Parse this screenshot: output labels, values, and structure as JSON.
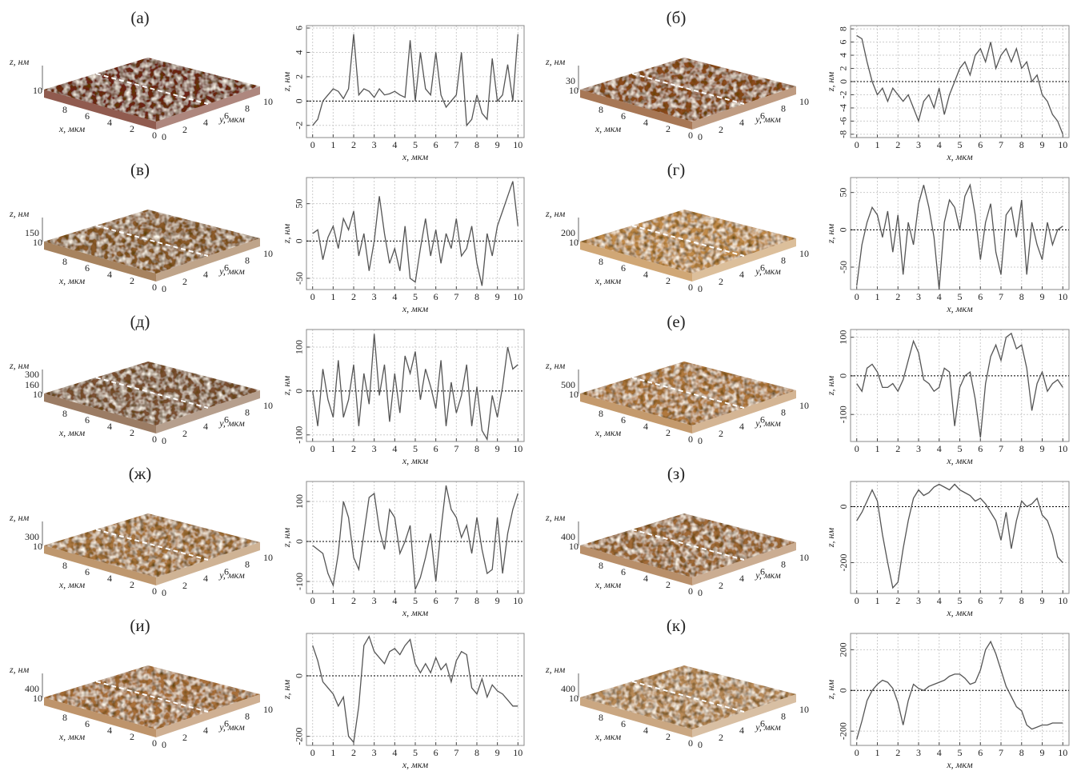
{
  "chart_data": [
    {
      "type": "line",
      "label": "(а)",
      "xlabel": "x, мкм",
      "ylabel": "z, нм",
      "color": "#555",
      "grid": true,
      "zero_line": true,
      "x": [
        0,
        0.25,
        0.5,
        0.75,
        1,
        1.25,
        1.5,
        1.75,
        2,
        2.25,
        2.5,
        2.75,
        3,
        3.25,
        3.5,
        3.75,
        4,
        4.25,
        4.5,
        4.75,
        5,
        5.25,
        5.5,
        5.75,
        6,
        6.25,
        6.5,
        6.75,
        7,
        7.25,
        7.5,
        7.75,
        8,
        8.25,
        8.5,
        8.75,
        9,
        9.25,
        9.5,
        9.75,
        10
      ],
      "values": [
        -2,
        -1.5,
        0,
        0.5,
        1,
        0.8,
        0.2,
        1,
        5.5,
        0.5,
        1,
        0.8,
        0.3,
        1,
        0.5,
        0.6,
        0.8,
        0.5,
        0.3,
        5,
        0,
        4,
        1,
        0.5,
        4,
        0.5,
        -0.5,
        0,
        0.5,
        4,
        -2,
        -1.5,
        0.5,
        -1,
        -1.5,
        3.5,
        0,
        0.5,
        3,
        0,
        5.5
      ],
      "xlim": [
        -0.3,
        10.3
      ],
      "ylim": [
        -3,
        6.2
      ],
      "xticks": [
        0,
        1,
        2,
        3,
        4,
        5,
        6,
        7,
        8,
        9,
        10
      ],
      "yticks": [
        -2,
        0,
        2,
        4,
        6
      ],
      "surface": {
        "color": "#6b2414",
        "z_label": "z, нм",
        "x_label": "x, мкм",
        "y_label": "y, мкм",
        "z_ticks": [],
        "x_ticks": [
          10,
          8,
          6,
          4,
          2,
          0
        ],
        "y_ticks": [
          0,
          2,
          4,
          6,
          8,
          10
        ]
      }
    },
    {
      "type": "line",
      "label": "(б)",
      "xlabel": "x, мкм",
      "ylabel": "z, нм",
      "color": "#555",
      "grid": true,
      "zero_line": true,
      "x": [
        0,
        0.25,
        0.5,
        0.75,
        1,
        1.25,
        1.5,
        1.75,
        2,
        2.25,
        2.5,
        2.75,
        3,
        3.25,
        3.5,
        3.75,
        4,
        4.25,
        4.5,
        4.75,
        5,
        5.25,
        5.5,
        5.75,
        6,
        6.25,
        6.5,
        6.75,
        7,
        7.25,
        7.5,
        7.75,
        8,
        8.25,
        8.5,
        8.75,
        9,
        9.25,
        9.5,
        9.75,
        10
      ],
      "values": [
        7,
        6.5,
        3,
        0,
        -2,
        -1,
        -3,
        -1,
        -2,
        -3,
        -2,
        -4,
        -6,
        -3,
        -2,
        -4,
        -1,
        -5,
        -2,
        0,
        2,
        3,
        1,
        4,
        5,
        3,
        6,
        2,
        4,
        5,
        3,
        5,
        2,
        3,
        0,
        1,
        -2,
        -3,
        -5,
        -6,
        -8
      ],
      "xlim": [
        -0.3,
        10.3
      ],
      "ylim": [
        -8.5,
        8.5
      ],
      "xticks": [
        0,
        1,
        2,
        3,
        4,
        5,
        6,
        7,
        8,
        9,
        10
      ],
      "yticks": [
        -8,
        -6,
        -4,
        -2,
        0,
        2,
        4,
        6,
        8
      ],
      "surface": {
        "color": "#8a4a1c",
        "z_label": "z, нм",
        "x_label": "x, мкм",
        "y_label": "y, мкм",
        "z_ticks": [
          30
        ],
        "x_ticks": [
          10,
          8,
          6,
          4,
          2,
          0
        ],
        "y_ticks": [
          0,
          2,
          4,
          6,
          8,
          10
        ]
      }
    },
    {
      "type": "line",
      "label": "(в)",
      "xlabel": "x, мкм",
      "ylabel": "z, нм",
      "color": "#555",
      "grid": true,
      "zero_line": true,
      "x": [
        0,
        0.25,
        0.5,
        0.75,
        1,
        1.25,
        1.5,
        1.75,
        2,
        2.25,
        2.5,
        2.75,
        3,
        3.25,
        3.5,
        3.75,
        4,
        4.25,
        4.5,
        4.75,
        5,
        5.25,
        5.5,
        5.75,
        6,
        6.25,
        6.5,
        6.75,
        7,
        7.25,
        7.5,
        7.75,
        8,
        8.25,
        8.5,
        8.75,
        9,
        9.25,
        9.5,
        9.75,
        10
      ],
      "values": [
        10,
        15,
        -25,
        5,
        20,
        -10,
        30,
        15,
        40,
        -20,
        10,
        -40,
        0,
        60,
        10,
        -30,
        -10,
        -40,
        20,
        -50,
        -55,
        -10,
        30,
        -20,
        15,
        -30,
        10,
        -10,
        30,
        -20,
        -10,
        20,
        -30,
        -60,
        10,
        -20,
        20,
        40,
        60,
        80,
        20
      ],
      "xlim": [
        -0.3,
        10.3
      ],
      "ylim": [
        -65,
        85
      ],
      "xticks": [
        0,
        1,
        2,
        3,
        4,
        5,
        6,
        7,
        8,
        9,
        10
      ],
      "yticks": [
        -50,
        0,
        50
      ],
      "surface": {
        "color": "#8a5a2a",
        "z_label": "z, нм",
        "x_label": "x, мкм",
        "y_label": "y, мкм",
        "z_ticks": [
          150
        ],
        "x_ticks": [
          10,
          8,
          6,
          4,
          2,
          0
        ],
        "y_ticks": [
          0,
          2,
          4,
          6,
          8,
          10
        ]
      }
    },
    {
      "type": "line",
      "label": "(г)",
      "xlabel": "x, мкм",
      "ylabel": "z, нм",
      "color": "#555",
      "grid": true,
      "zero_line": true,
      "x": [
        0,
        0.25,
        0.5,
        0.75,
        1,
        1.25,
        1.5,
        1.75,
        2,
        2.25,
        2.5,
        2.75,
        3,
        3.25,
        3.5,
        3.75,
        4,
        4.25,
        4.5,
        4.75,
        5,
        5.25,
        5.5,
        5.75,
        6,
        6.25,
        6.5,
        6.75,
        7,
        7.25,
        7.5,
        7.75,
        8,
        8.25,
        8.5,
        8.75,
        9,
        9.25,
        9.5,
        9.75,
        10
      ],
      "values": [
        -75,
        -20,
        10,
        30,
        20,
        -10,
        25,
        -30,
        20,
        -60,
        10,
        -20,
        35,
        60,
        30,
        -10,
        -80,
        10,
        40,
        30,
        0,
        45,
        60,
        20,
        -40,
        10,
        35,
        -30,
        -60,
        20,
        30,
        -10,
        40,
        -60,
        10,
        -20,
        -40,
        10,
        -20,
        0,
        5
      ],
      "xlim": [
        -0.3,
        10.3
      ],
      "ylim": [
        -80,
        70
      ],
      "xticks": [
        0,
        1,
        2,
        3,
        4,
        5,
        6,
        7,
        8,
        9,
        10
      ],
      "yticks": [
        -50,
        0,
        50
      ],
      "surface": {
        "color": "#c08a48",
        "z_label": "z, нм",
        "x_label": "x, мкм",
        "y_label": "y, мкм",
        "z_ticks": [
          200
        ],
        "x_ticks": [
          10,
          8,
          6,
          4,
          2,
          0
        ],
        "y_ticks": [
          0,
          2,
          4,
          6,
          8,
          10
        ]
      }
    },
    {
      "type": "line",
      "label": "(д)",
      "xlabel": "x, мкм",
      "ylabel": "z, нм",
      "color": "#555",
      "grid": true,
      "zero_line": true,
      "x": [
        0,
        0.25,
        0.5,
        0.75,
        1,
        1.25,
        1.5,
        1.75,
        2,
        2.25,
        2.5,
        2.75,
        3,
        3.25,
        3.5,
        3.75,
        4,
        4.25,
        4.5,
        4.75,
        5,
        5.25,
        5.5,
        5.75,
        6,
        6.25,
        6.5,
        6.75,
        7,
        7.25,
        7.5,
        7.75,
        8,
        8.25,
        8.5,
        8.75,
        9,
        9.25,
        9.5,
        9.75,
        10
      ],
      "values": [
        0,
        -80,
        50,
        -20,
        -60,
        70,
        -60,
        -20,
        60,
        -80,
        40,
        -30,
        130,
        -10,
        60,
        -70,
        40,
        -50,
        80,
        40,
        90,
        -20,
        50,
        10,
        -40,
        70,
        -80,
        20,
        -50,
        -10,
        60,
        -80,
        10,
        -90,
        -110,
        -10,
        -60,
        10,
        100,
        50,
        60
      ],
      "xlim": [
        -0.3,
        10.3
      ],
      "ylim": [
        -115,
        140
      ],
      "xticks": [
        0,
        1,
        2,
        3,
        4,
        5,
        6,
        7,
        8,
        9,
        10
      ],
      "yticks": [
        -100,
        0,
        100
      ],
      "surface": {
        "color": "#7a5030",
        "z_label": "z, нм",
        "x_label": "x, мкм",
        "y_label": "y, мкм",
        "z_ticks": [
          300,
          160
        ],
        "x_ticks": [
          10,
          8,
          6,
          4,
          2,
          0
        ],
        "y_ticks": [
          0,
          2,
          4,
          6,
          8,
          10
        ]
      }
    },
    {
      "type": "line",
      "label": "(е)",
      "xlabel": "x, мкм",
      "ylabel": "z, нм",
      "color": "#555",
      "grid": true,
      "zero_line": true,
      "x": [
        0,
        0.25,
        0.5,
        0.75,
        1,
        1.25,
        1.5,
        1.75,
        2,
        2.25,
        2.5,
        2.75,
        3,
        3.25,
        3.5,
        3.75,
        4,
        4.25,
        4.5,
        4.75,
        5,
        5.25,
        5.5,
        5.75,
        6,
        6.25,
        6.5,
        6.75,
        7,
        7.25,
        7.5,
        7.75,
        8,
        8.25,
        8.5,
        8.75,
        9,
        9.25,
        9.5,
        9.75,
        10
      ],
      "values": [
        -20,
        -40,
        20,
        30,
        10,
        -30,
        -30,
        -20,
        -40,
        -10,
        40,
        90,
        60,
        -10,
        -20,
        -40,
        -30,
        20,
        10,
        -130,
        -30,
        0,
        10,
        -60,
        -160,
        -20,
        50,
        80,
        40,
        100,
        110,
        70,
        80,
        20,
        -90,
        -20,
        10,
        -40,
        -20,
        -10,
        -30
      ],
      "xlim": [
        -0.3,
        10.3
      ],
      "ylim": [
        -170,
        120
      ],
      "xticks": [
        0,
        1,
        2,
        3,
        4,
        5,
        6,
        7,
        8,
        9,
        10
      ],
      "yticks": [
        -100,
        0,
        100
      ],
      "surface": {
        "color": "#b0783c",
        "z_label": "z, нм",
        "x_label": "x, мкм",
        "y_label": "y, мкм",
        "z_ticks": [
          500
        ],
        "x_ticks": [
          10,
          8,
          6,
          4,
          2,
          0
        ],
        "y_ticks": [
          0,
          2,
          4,
          6,
          8,
          10
        ]
      }
    },
    {
      "type": "line",
      "label": "(ж)",
      "xlabel": "x, мкм",
      "ylabel": "z, нм",
      "color": "#555",
      "grid": true,
      "zero_line": true,
      "x": [
        0,
        0.25,
        0.5,
        0.75,
        1,
        1.25,
        1.5,
        1.75,
        2,
        2.25,
        2.5,
        2.75,
        3,
        3.25,
        3.5,
        3.75,
        4,
        4.25,
        4.5,
        4.75,
        5,
        5.25,
        5.5,
        5.75,
        6,
        6.25,
        6.5,
        6.75,
        7,
        7.25,
        7.5,
        7.75,
        8,
        8.25,
        8.5,
        8.75,
        9,
        9.25,
        9.5,
        9.75,
        10
      ],
      "values": [
        -10,
        -20,
        -30,
        -80,
        -110,
        -30,
        100,
        60,
        -40,
        -70,
        20,
        110,
        120,
        30,
        -20,
        80,
        60,
        -30,
        0,
        40,
        -120,
        -90,
        -40,
        20,
        -100,
        30,
        140,
        80,
        60,
        10,
        40,
        -30,
        60,
        -20,
        -80,
        -70,
        60,
        -80,
        20,
        80,
        120
      ],
      "xlim": [
        -0.3,
        10.3
      ],
      "ylim": [
        -130,
        150
      ],
      "xticks": [
        0,
        1,
        2,
        3,
        4,
        5,
        6,
        7,
        8,
        9,
        10
      ],
      "yticks": [
        -100,
        0,
        100
      ],
      "surface": {
        "color": "#a8743e",
        "z_label": "z, нм",
        "x_label": "x, мкм",
        "y_label": "y, мкм",
        "z_ticks": [
          300
        ],
        "x_ticks": [
          10,
          8,
          6,
          4,
          2,
          0
        ],
        "y_ticks": [
          0,
          2,
          4,
          6,
          8,
          10
        ]
      }
    },
    {
      "type": "line",
      "label": "(з)",
      "xlabel": "x, мкм",
      "ylabel": "z, нм",
      "color": "#555",
      "grid": true,
      "zero_line": true,
      "x": [
        0,
        0.25,
        0.5,
        0.75,
        1,
        1.25,
        1.5,
        1.75,
        2,
        2.25,
        2.5,
        2.75,
        3,
        3.25,
        3.5,
        3.75,
        4,
        4.25,
        4.5,
        4.75,
        5,
        5.25,
        5.5,
        5.75,
        6,
        6.25,
        6.5,
        6.75,
        7,
        7.25,
        7.5,
        7.75,
        8,
        8.25,
        8.5,
        8.75,
        9,
        9.25,
        9.5,
        9.75,
        10
      ],
      "values": [
        -50,
        -20,
        20,
        60,
        20,
        -100,
        -200,
        -290,
        -270,
        -150,
        -50,
        30,
        60,
        40,
        50,
        70,
        80,
        70,
        60,
        80,
        60,
        50,
        40,
        20,
        30,
        10,
        -20,
        -50,
        -120,
        -20,
        -150,
        -50,
        20,
        0,
        10,
        30,
        -30,
        -50,
        -100,
        -180,
        -200
      ],
      "xlim": [
        -0.3,
        10.3
      ],
      "ylim": [
        -310,
        90
      ],
      "xticks": [
        0,
        1,
        2,
        3,
        4,
        5,
        6,
        7,
        8,
        9,
        10
      ],
      "yticks": [
        -200,
        0
      ],
      "surface": {
        "color": "#a06a38",
        "z_label": "z, нм",
        "x_label": "x, мкм",
        "y_label": "y, мкм",
        "z_ticks": [
          400
        ],
        "x_ticks": [
          10,
          8,
          6,
          4,
          2,
          0
        ],
        "y_ticks": [
          0,
          2,
          4,
          6,
          8,
          10
        ]
      }
    },
    {
      "type": "line",
      "label": "(и)",
      "xlabel": "x, мкм",
      "ylabel": "z, нм",
      "color": "#555",
      "grid": true,
      "zero_line": true,
      "x": [
        0,
        0.25,
        0.5,
        0.75,
        1,
        1.25,
        1.5,
        1.75,
        2,
        2.25,
        2.5,
        2.75,
        3,
        3.25,
        3.5,
        3.75,
        4,
        4.25,
        4.5,
        4.75,
        5,
        5.25,
        5.5,
        5.75,
        6,
        6.25,
        6.5,
        6.75,
        7,
        7.25,
        7.5,
        7.75,
        8,
        8.25,
        8.5,
        8.75,
        9,
        9.25,
        9.5,
        9.75,
        10
      ],
      "values": [
        100,
        50,
        -20,
        -40,
        -60,
        -100,
        -70,
        -200,
        -220,
        -100,
        100,
        130,
        80,
        60,
        40,
        80,
        90,
        70,
        100,
        120,
        40,
        10,
        40,
        10,
        60,
        20,
        40,
        -20,
        50,
        80,
        70,
        -40,
        -60,
        -10,
        -70,
        -30,
        -50,
        -60,
        -80,
        -100,
        -100
      ],
      "xlim": [
        -0.3,
        10.3
      ],
      "ylim": [
        -230,
        140
      ],
      "xticks": [
        0,
        1,
        2,
        3,
        4,
        5,
        6,
        7,
        8,
        9,
        10
      ],
      "yticks": [
        -200,
        0
      ],
      "surface": {
        "color": "#a8703a",
        "z_label": "z, нм",
        "x_label": "x, мкм",
        "y_label": "y, мкм",
        "z_ticks": [
          400
        ],
        "x_ticks": [
          10,
          8,
          6,
          4,
          2,
          0
        ],
        "y_ticks": [
          0,
          2,
          4,
          6,
          8,
          10
        ]
      }
    },
    {
      "type": "line",
      "label": "(к)",
      "xlabel": "x, мкм",
      "ylabel": "z, нм",
      "color": "#555",
      "grid": true,
      "zero_line": true,
      "x": [
        0,
        0.25,
        0.5,
        0.75,
        1,
        1.25,
        1.5,
        1.75,
        2,
        2.25,
        2.5,
        2.75,
        3,
        3.25,
        3.5,
        3.75,
        4,
        4.25,
        4.5,
        4.75,
        5,
        5.25,
        5.5,
        5.75,
        6,
        6.25,
        6.5,
        6.75,
        7,
        7.25,
        7.5,
        7.75,
        8,
        8.25,
        8.5,
        8.75,
        9,
        9.25,
        9.5,
        9.75,
        10
      ],
      "values": [
        -240,
        -150,
        -50,
        0,
        30,
        50,
        40,
        10,
        -60,
        -170,
        -50,
        30,
        10,
        0,
        20,
        30,
        40,
        50,
        70,
        80,
        80,
        60,
        30,
        40,
        100,
        200,
        240,
        180,
        100,
        20,
        -30,
        -80,
        -100,
        -170,
        -190,
        -180,
        -170,
        -170,
        -160,
        -160,
        -160
      ],
      "xlim": [
        -0.3,
        10.3
      ],
      "ylim": [
        -270,
        280
      ],
      "xticks": [
        0,
        1,
        2,
        3,
        4,
        5,
        6,
        7,
        8,
        9,
        10
      ],
      "yticks": [
        -200,
        0,
        200
      ],
      "surface": {
        "color": "#b88a58",
        "z_label": "z, нм",
        "x_label": "x, мкм",
        "y_label": "y, мкм",
        "z_ticks": [
          400
        ],
        "x_ticks": [
          10,
          8,
          6,
          4,
          2,
          0
        ],
        "y_ticks": [
          0,
          2,
          4,
          6,
          8,
          10
        ]
      }
    }
  ]
}
